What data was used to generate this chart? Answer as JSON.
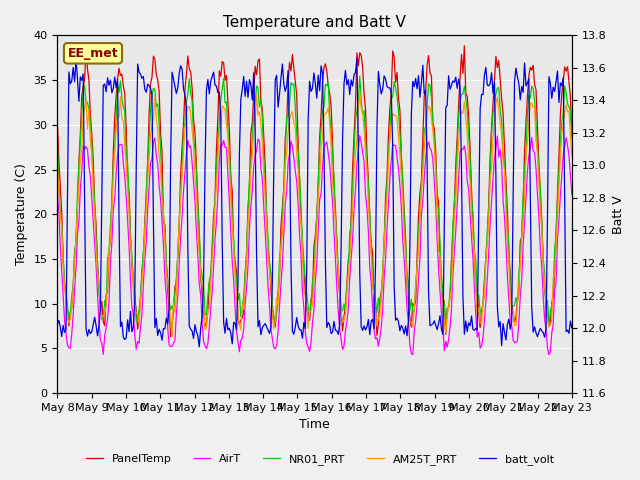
{
  "title": "Temperature and Batt V",
  "xlabel": "Time",
  "ylabel_left": "Temperature (C)",
  "ylabel_right": "Batt V",
  "annotation": "EE_met",
  "ylim_left": [
    0,
    40
  ],
  "ylim_right": [
    11.6,
    13.8
  ],
  "background_color": "#e8e8e8",
  "legend": [
    "PanelTemp",
    "AirT",
    "NR01_PRT",
    "AM25T_PRT",
    "batt_volt"
  ],
  "legend_colors": [
    "#dd0000",
    "#ff00ff",
    "#00cc00",
    "#ff9900",
    "#0000dd"
  ],
  "xtick_labels": [
    "May 8",
    "May 9",
    "May 10",
    "May 11",
    "May 12",
    "May 13",
    "May 14",
    "May 15",
    "May 16",
    "May 17",
    "May 18",
    "May 19",
    "May 20",
    "May 21",
    "May 22",
    "May 23"
  ],
  "n_days": 15,
  "grid_color": "#ffffff",
  "title_fontsize": 11,
  "axis_fontsize": 9,
  "tick_fontsize": 8,
  "yticks_left": [
    0,
    5,
    10,
    15,
    20,
    25,
    30,
    35,
    40
  ],
  "yticks_right": [
    11.6,
    11.8,
    12.0,
    12.2,
    12.4,
    12.6,
    12.8,
    13.0,
    13.2,
    13.4,
    13.6,
    13.8
  ],
  "batt_ylim": [
    11.6,
    13.8
  ],
  "temp_ylim": [
    0,
    40
  ]
}
